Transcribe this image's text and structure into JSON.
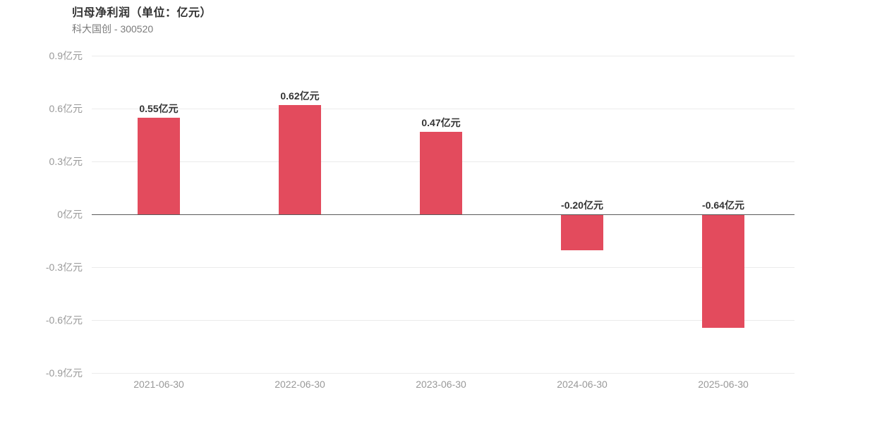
{
  "header": {
    "title": "归母净利润（单位：亿元）",
    "subtitle": "科大国创 - 300520"
  },
  "chart_data": {
    "type": "bar",
    "title": "归母净利润（单位：亿元）",
    "subtitle": "科大国创 - 300520",
    "xlabel": "",
    "ylabel": "亿元",
    "unit": "亿元",
    "categories": [
      "2021-06-30",
      "2022-06-30",
      "2023-06-30",
      "2024-06-30",
      "2025-06-30"
    ],
    "values": [
      0.55,
      0.62,
      0.47,
      -0.2,
      -0.64
    ],
    "value_labels": [
      "0.55亿元",
      "0.62亿元",
      "0.47亿元",
      "-0.20亿元",
      "-0.64亿元"
    ],
    "ylim": [
      -0.9,
      0.9
    ],
    "yticks": [
      {
        "value": 0.9,
        "label": "0.9亿元"
      },
      {
        "value": 0.6,
        "label": "0.6亿元"
      },
      {
        "value": 0.3,
        "label": "0.3亿元"
      },
      {
        "value": 0,
        "label": "0亿元"
      },
      {
        "value": -0.3,
        "label": "-0.3亿元"
      },
      {
        "value": -0.6,
        "label": "-0.6亿元"
      },
      {
        "value": -0.9,
        "label": "-0.9亿元"
      }
    ],
    "grid": true,
    "legend": false,
    "colors": {
      "bar": "#e34b5d",
      "zero_line": "#595959",
      "gridline": "#ebebeb",
      "value_label": "#333333",
      "axis_text": "#999999",
      "title": "#333333",
      "subtitle": "#7b7b7b"
    }
  }
}
